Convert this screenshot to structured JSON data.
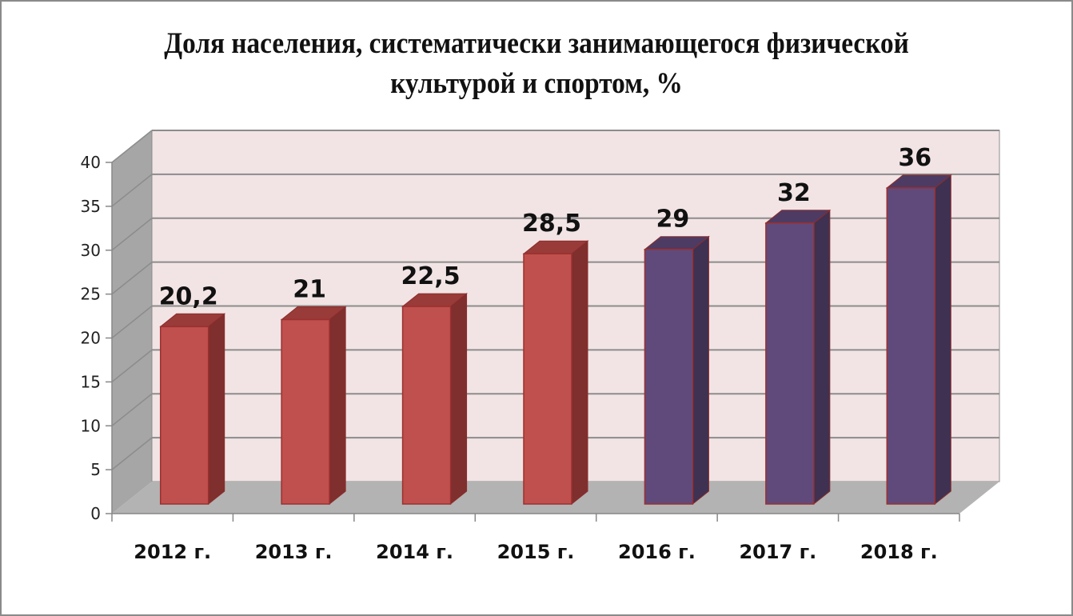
{
  "title_line1": "Доля населения, систематически занимающегося физической",
  "title_line2": "культурой и спортом, %",
  "colors": {
    "red_front": "#c0504d",
    "red_side": "#7f2f2d",
    "red_top": "#993b38",
    "purple_front": "#604a7b",
    "purple_side": "#3f3151",
    "purple_top": "#4d3b63",
    "wall": "#f2e4e5",
    "side_wall": "#a6a6a6",
    "floor": "#b3b3b3"
  },
  "chart_data": {
    "type": "bar",
    "title": "Доля населения, систематически занимающегося физической культурой и спортом, %",
    "categories": [
      "2012 г.",
      "2013 г.",
      "2014 г.",
      "2015 г.",
      "2016 г.",
      "2017 г.",
      "2018 г."
    ],
    "values": [
      20.2,
      21,
      22.5,
      28.5,
      29,
      32,
      36
    ],
    "value_labels": [
      "20,2",
      "21",
      "22,5",
      "28,5",
      "29",
      "32",
      "36"
    ],
    "bar_colors": [
      "red",
      "red",
      "red",
      "red",
      "purple",
      "purple",
      "purple"
    ],
    "xlabel": "",
    "ylabel": "",
    "ylim": [
      0,
      40
    ],
    "yticks": [
      0,
      5,
      10,
      15,
      20,
      25,
      30,
      35,
      40
    ],
    "grid": true,
    "legend": "none",
    "style": "3d-column"
  }
}
